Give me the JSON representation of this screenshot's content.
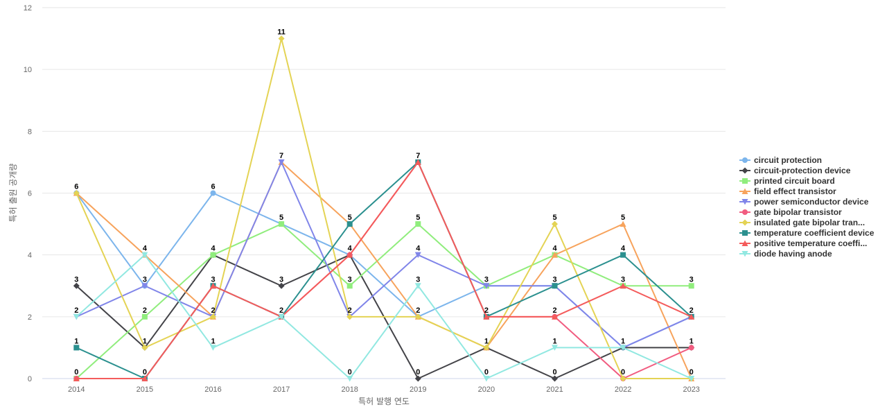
{
  "chart_data": {
    "type": "line",
    "title": "",
    "xlabel": "특허 발행 연도",
    "ylabel": "특허 출원 공개량",
    "x": [
      "2014",
      "2015",
      "2016",
      "2017",
      "2018",
      "2019",
      "2020",
      "2021",
      "2022",
      "2023"
    ],
    "ylim": [
      0,
      12
    ],
    "yticks": [
      0,
      2,
      4,
      6,
      8,
      10,
      12
    ],
    "grid": true,
    "legend_position": "right",
    "series": [
      {
        "name": "circuit protection",
        "color": "#7cb5ec",
        "marker": "circle",
        "values": [
          6,
          3,
          6,
          5,
          4,
          2,
          3,
          3,
          1,
          2
        ]
      },
      {
        "name": "circuit-protection device",
        "color": "#434348",
        "marker": "diamond",
        "values": [
          3,
          1,
          4,
          3,
          4,
          0,
          1,
          0,
          1,
          1
        ]
      },
      {
        "name": "printed circuit board",
        "color": "#90ed7d",
        "marker": "square",
        "values": [
          0,
          2,
          4,
          5,
          3,
          5,
          3,
          4,
          3,
          3
        ]
      },
      {
        "name": "field effect transistor",
        "color": "#f7a35c",
        "marker": "triangle",
        "values": [
          6,
          4,
          2,
          7,
          5,
          2,
          1,
          4,
          5,
          0
        ]
      },
      {
        "name": "power semiconductor device",
        "color": "#8085e9",
        "marker": "triangle-down",
        "values": [
          2,
          3,
          2,
          7,
          2,
          4,
          3,
          3,
          1,
          2
        ]
      },
      {
        "name": "gate bipolar transistor",
        "color": "#f15c80",
        "marker": "circle",
        "values": [
          0,
          0,
          3,
          2,
          4,
          7,
          2,
          2,
          0,
          1
        ]
      },
      {
        "name": "insulated gate bipolar tran...",
        "color": "#e4d354",
        "marker": "diamond",
        "values": [
          6,
          1,
          2,
          11,
          2,
          2,
          1,
          5,
          0,
          0
        ]
      },
      {
        "name": "temperature coefficient device",
        "color": "#2b908f",
        "marker": "square",
        "values": [
          1,
          0,
          3,
          2,
          5,
          7,
          2,
          3,
          4,
          2
        ]
      },
      {
        "name": "positive temperature coeffi...",
        "color": "#f45b5b",
        "marker": "triangle",
        "values": [
          0,
          0,
          3,
          2,
          4,
          7,
          2,
          2,
          3,
          2
        ]
      },
      {
        "name": "diode having anode",
        "color": "#91e8e1",
        "marker": "triangle-down",
        "values": [
          2,
          4,
          1,
          2,
          0,
          3,
          0,
          1,
          1,
          0
        ]
      }
    ],
    "data_labels": [
      {
        "x": "2014",
        "values": [
          6,
          3,
          2,
          1,
          0
        ]
      },
      {
        "x": "2015",
        "values": [
          4,
          3,
          2,
          1,
          0
        ]
      },
      {
        "x": "2016",
        "values": [
          6,
          4,
          3,
          2,
          1
        ]
      },
      {
        "x": "2017",
        "values": [
          11,
          7,
          5,
          3,
          2
        ]
      },
      {
        "x": "2018",
        "values": [
          5,
          4,
          3,
          2,
          0
        ]
      },
      {
        "x": "2019",
        "values": [
          7,
          5,
          4,
          3,
          2,
          0
        ]
      },
      {
        "x": "2020",
        "values": [
          3,
          2,
          1,
          0
        ]
      },
      {
        "x": "2021",
        "values": [
          5,
          4,
          3,
          2,
          1,
          0
        ]
      },
      {
        "x": "2022",
        "values": [
          5,
          4,
          3,
          1,
          0
        ]
      },
      {
        "x": "2023",
        "values": [
          3,
          2,
          1,
          0
        ]
      }
    ]
  }
}
